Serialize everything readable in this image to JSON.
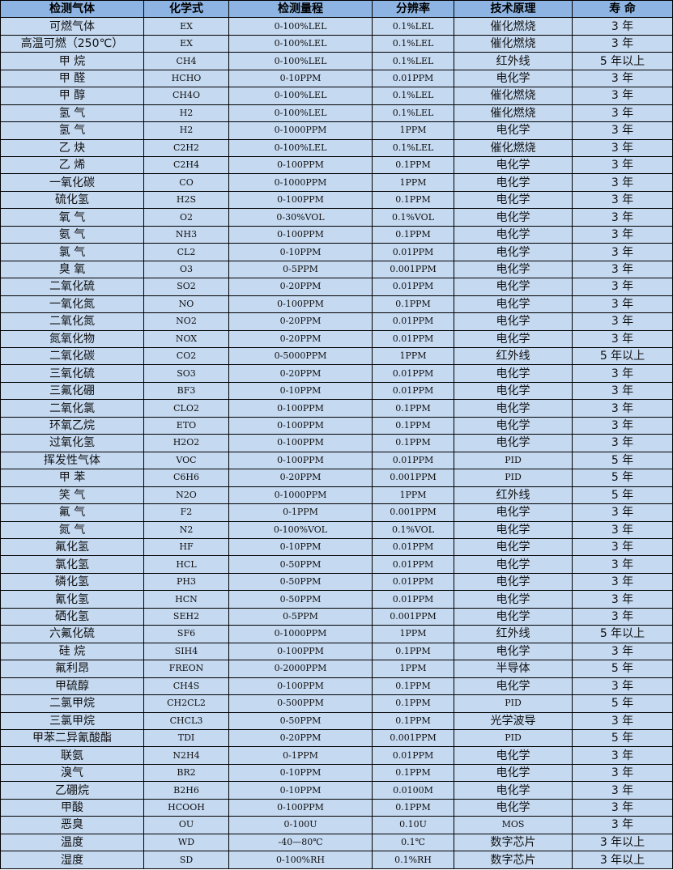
{
  "colors": {
    "header_bg": "#8db4e2",
    "row_bg": "#c5d9f1"
  },
  "table": {
    "headers": [
      "检测气体",
      "化学式",
      "检测量程",
      "分辨率",
      "技术原理",
      "寿 命"
    ],
    "rows": [
      [
        "可燃气体",
        "EX",
        "0-100%LEL",
        "0.1%LEL",
        "催化燃烧",
        "3 年"
      ],
      [
        "高温可燃（250℃）",
        "EX",
        "0-100%LEL",
        "0.1%LEL",
        "催化燃烧",
        "3 年"
      ],
      [
        "甲 烷",
        "CH4",
        "0-100%LEL",
        "0.1%LEL",
        "红外线",
        "5 年以上"
      ],
      [
        "甲 醛",
        "HCHO",
        "0-10PPM",
        "0.01PPM",
        "电化学",
        "3 年"
      ],
      [
        "甲 醇",
        "CH4O",
        "0-100%LEL",
        "0.1%LEL",
        "催化燃烧",
        "3 年"
      ],
      [
        "氢 气",
        "H2",
        "0-100%LEL",
        "0.1%LEL",
        "催化燃烧",
        "3 年"
      ],
      [
        "氢 气",
        "H2",
        "0-1000PPM",
        "1PPM",
        "电化学",
        "3 年"
      ],
      [
        "乙 炔",
        "C2H2",
        "0-100%LEL",
        "0.1%LEL",
        "催化燃烧",
        "3 年"
      ],
      [
        "乙 烯",
        "C2H4",
        "0-100PPM",
        "0.1PPM",
        "电化学",
        "3 年"
      ],
      [
        "一氧化碳",
        "CO",
        "0-1000PPM",
        "1PPM",
        "电化学",
        "3 年"
      ],
      [
        "硫化氢",
        "H2S",
        "0-100PPM",
        "0.1PPM",
        "电化学",
        "3 年"
      ],
      [
        "氧 气",
        "O2",
        "0-30%VOL",
        "0.1%VOL",
        "电化学",
        "3 年"
      ],
      [
        "氨 气",
        "NH3",
        "0-100PPM",
        "0.1PPM",
        "电化学",
        "3 年"
      ],
      [
        "氯 气",
        "CL2",
        "0-10PPM",
        "0.01PPM",
        "电化学",
        "3 年"
      ],
      [
        "臭 氧",
        "O3",
        "0-5PPM",
        "0.001PPM",
        "电化学",
        "3 年"
      ],
      [
        "二氧化硫",
        "SO2",
        "0-20PPM",
        "0.01PPM",
        "电化学",
        "3 年"
      ],
      [
        "一氧化氮",
        "NO",
        "0-100PPM",
        "0.1PPM",
        "电化学",
        "3 年"
      ],
      [
        "二氧化氮",
        "NO2",
        "0-20PPM",
        "0.01PPM",
        "电化学",
        "3 年"
      ],
      [
        "氮氧化物",
        "NOX",
        "0-20PPM",
        "0.01PPM",
        "电化学",
        "3 年"
      ],
      [
        "二氧化碳",
        "CO2",
        "0-5000PPM",
        "1PPM",
        "红外线",
        "5 年以上"
      ],
      [
        "三氧化硫",
        "SO3",
        "0-20PPM",
        "0.01PPM",
        "电化学",
        "3 年"
      ],
      [
        "三氟化硼",
        "BF3",
        "0-10PPM",
        "0.01PPM",
        "电化学",
        "3 年"
      ],
      [
        "二氧化氯",
        "CLO2",
        "0-100PPM",
        "0.1PPM",
        "电化学",
        "3 年"
      ],
      [
        "环氧乙烷",
        "ETO",
        "0-100PPM",
        "0.1PPM",
        "电化学",
        "3 年"
      ],
      [
        "过氧化氢",
        "H2O2",
        "0-100PPM",
        "0.1PPM",
        "电化学",
        "3 年"
      ],
      [
        "挥发性气体",
        "VOC",
        "0-100PPM",
        "0.01PPM",
        "PID",
        "5 年"
      ],
      [
        "甲 苯",
        "C6H6",
        "0-20PPM",
        "0.001PPM",
        "PID",
        "5 年"
      ],
      [
        "笑 气",
        "N2O",
        "0-1000PPM",
        "1PPM",
        "红外线",
        "5 年"
      ],
      [
        "氟 气",
        "F2",
        "0-1PPM",
        "0.001PPM",
        "电化学",
        "3 年"
      ],
      [
        "氮 气",
        "N2",
        "0-100%VOL",
        "0.1%VOL",
        "电化学",
        "3 年"
      ],
      [
        "氟化氢",
        "HF",
        "0-10PPM",
        "0.01PPM",
        "电化学",
        "3 年"
      ],
      [
        "氯化氢",
        "HCL",
        "0-50PPM",
        "0.01PPM",
        "电化学",
        "3 年"
      ],
      [
        "磷化氢",
        "PH3",
        "0-50PPM",
        "0.01PPM",
        "电化学",
        "3 年"
      ],
      [
        "氰化氢",
        "HCN",
        "0-50PPM",
        "0.01PPM",
        "电化学",
        "3 年"
      ],
      [
        "硒化氢",
        "SEH2",
        "0-5PPM",
        "0.001PPM",
        "电化学",
        "3 年"
      ],
      [
        "六氟化硫",
        "SF6",
        "0-1000PPM",
        "1PPM",
        "红外线",
        "5 年以上"
      ],
      [
        "硅 烷",
        "SIH4",
        "0-100PPM",
        "0.1PPM",
        "电化学",
        "3 年"
      ],
      [
        "氟利昂",
        "FREON",
        "0-2000PPM",
        "1PPM",
        "半导体",
        "5 年"
      ],
      [
        "甲硫醇",
        "CH4S",
        "0-100PPM",
        "0.1PPM",
        "电化学",
        "3 年"
      ],
      [
        "二氯甲烷",
        "CH2CL2",
        "0-500PPM",
        "0.1PPM",
        "PID",
        "5 年"
      ],
      [
        "三氯甲烷",
        "CHCL3",
        "0-50PPM",
        "0.1PPM",
        "光学波导",
        "3 年"
      ],
      [
        "甲苯二异氰酸酯",
        "TDI",
        "0-20PPM",
        "0.001PPM",
        "PID",
        "5 年"
      ],
      [
        "联氨",
        "N2H4",
        "0-1PPM",
        "0.01PPM",
        "电化学",
        "3 年"
      ],
      [
        "溴气",
        "BR2",
        "0-10PPM",
        "0.1PPM",
        "电化学",
        "3 年"
      ],
      [
        "乙硼烷",
        "B2H6",
        "0-10PPM",
        "0.0100M",
        "电化学",
        "3 年"
      ],
      [
        "甲酸",
        "HCOOH",
        "0-100PPM",
        "0.1PPM",
        "电化学",
        "3 年"
      ],
      [
        "恶臭",
        "OU",
        "0-100U",
        "0.10U",
        "MOS",
        "3 年"
      ],
      [
        "温度",
        "WD",
        "-40—80℃",
        "0.1℃",
        "数字芯片",
        "3 年以上"
      ],
      [
        "湿度",
        "SD",
        "0-100%RH",
        "0.1%RH",
        "数字芯片",
        "3 年以上"
      ]
    ]
  }
}
